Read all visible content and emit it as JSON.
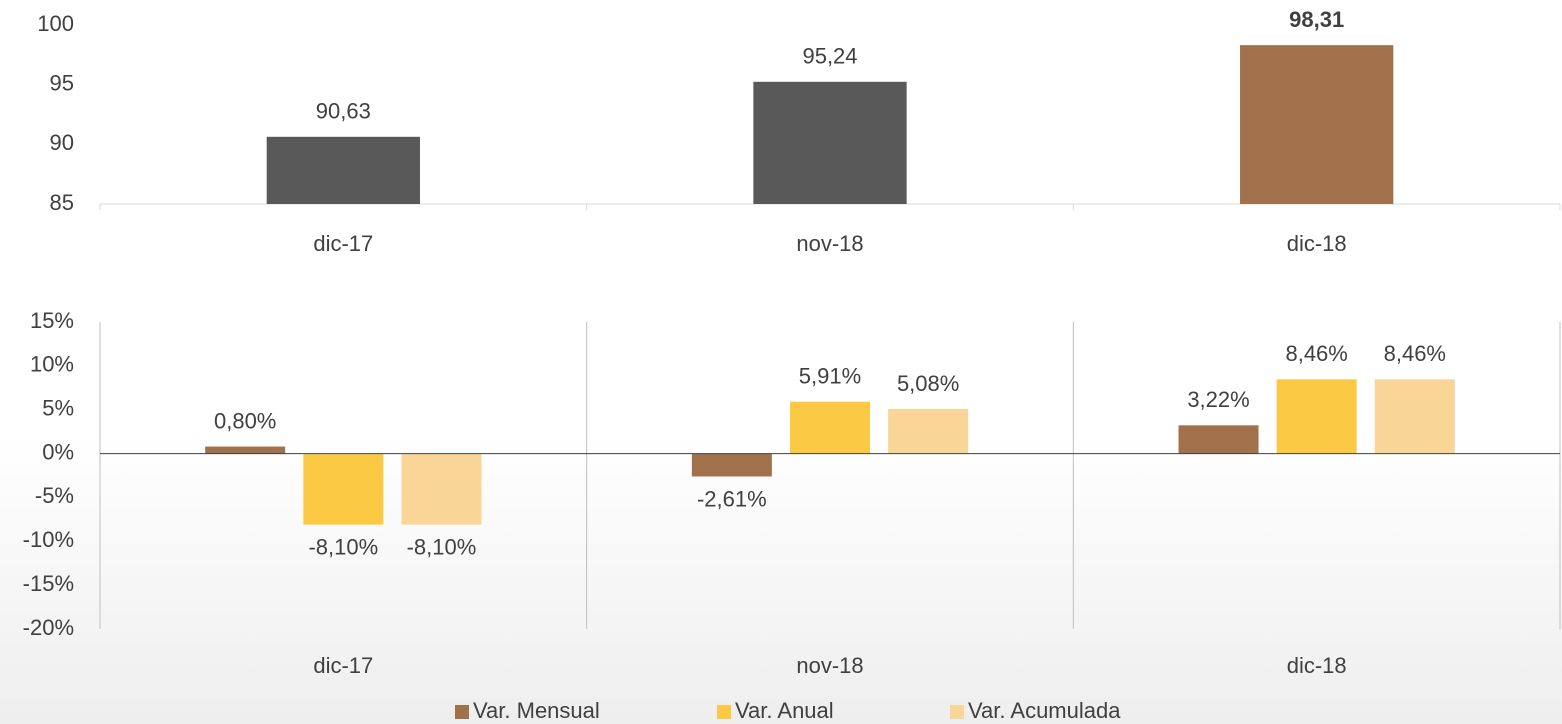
{
  "chart_data": [
    {
      "type": "bar",
      "categories": [
        "dic-17",
        "nov-18",
        "dic-18"
      ],
      "values": [
        90.63,
        95.24,
        98.31
      ],
      "value_labels": [
        "90,63",
        "95,24",
        "98,31"
      ],
      "value_label_weight": [
        "normal",
        "normal",
        "bold"
      ],
      "colors": [
        "#595959",
        "#595959",
        "#a0714a"
      ],
      "ylim": [
        85,
        100
      ],
      "yticks": [
        85,
        90,
        95,
        100
      ],
      "grid": false
    },
    {
      "type": "bar",
      "categories": [
        "dic-17",
        "nov-18",
        "dic-18"
      ],
      "series": [
        {
          "name": "Var. Mensual",
          "color": "#a0714a",
          "values": [
            0.8,
            -2.61,
            3.22
          ],
          "value_labels": [
            "0,80%",
            "-2,61%",
            "3,22%"
          ]
        },
        {
          "name": "Var. Anual",
          "color": "#fcc945",
          "values": [
            -8.1,
            5.91,
            8.46
          ],
          "value_labels": [
            "-8,10%",
            "5,91%",
            "8,46%"
          ]
        },
        {
          "name": "Var. Acumulada",
          "color": "#fad598",
          "values": [
            -8.1,
            5.08,
            8.46
          ],
          "value_labels": [
            "-8,10%",
            "5,08%",
            "8,46%"
          ]
        }
      ],
      "ylim": [
        -20,
        15
      ],
      "yticks": [
        {
          "value": -20,
          "label": "-20%"
        },
        {
          "value": -15,
          "label": "-15%"
        },
        {
          "value": -10,
          "label": "-10%"
        },
        {
          "value": -5,
          "label": "-5%"
        },
        {
          "value": 0,
          "label": "0%"
        },
        {
          "value": 5,
          "label": "5%"
        },
        {
          "value": 10,
          "label": "10%"
        },
        {
          "value": 15,
          "label": "15%"
        }
      ],
      "legend": "bottom",
      "grid": false
    }
  ]
}
